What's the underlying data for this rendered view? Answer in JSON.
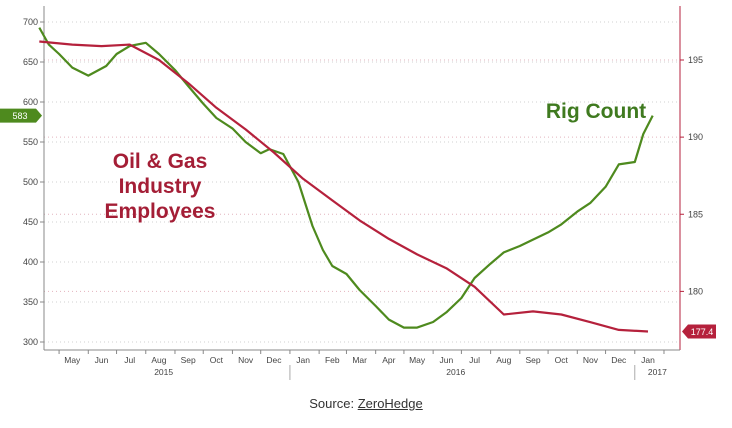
{
  "chart_data": {
    "type": "line",
    "x_month_ticks": [
      "May",
      "Jun",
      "Jul",
      "Aug",
      "Sep",
      "Oct",
      "Nov",
      "Dec",
      "Jan",
      "Feb",
      "Mar",
      "Apr",
      "May",
      "Jun",
      "Jul",
      "Aug",
      "Sep",
      "Oct",
      "Nov",
      "Dec",
      "Jan"
    ],
    "x_year_labels": [
      "2015",
      "2016",
      "2017"
    ],
    "y_left": {
      "ticks": [
        300,
        350,
        400,
        450,
        500,
        550,
        600,
        650,
        700
      ],
      "lim": [
        290,
        720
      ]
    },
    "y_right": {
      "ticks": [
        180,
        185,
        190,
        195
      ],
      "lim": [
        176.2,
        198.5
      ]
    },
    "series": [
      {
        "name": "Rig Count",
        "axis": "left",
        "color": "#4e8a1e",
        "last_value_label": "583",
        "x": [
          "2015-04-10",
          "2015-04-20",
          "2015-05-01",
          "2015-05-15",
          "2015-06-01",
          "2015-06-20",
          "2015-07-01",
          "2015-07-15",
          "2015-08-01",
          "2015-08-15",
          "2015-09-01",
          "2015-09-15",
          "2015-10-01",
          "2015-10-15",
          "2015-11-01",
          "2015-11-15",
          "2015-12-01",
          "2015-12-10",
          "2015-12-25",
          "2016-01-10",
          "2016-01-25",
          "2016-02-05",
          "2016-02-15",
          "2016-03-01",
          "2016-03-15",
          "2016-04-01",
          "2016-04-15",
          "2016-05-01",
          "2016-05-15",
          "2016-06-01",
          "2016-06-15",
          "2016-07-01",
          "2016-07-15",
          "2016-08-01",
          "2016-08-15",
          "2016-09-01",
          "2016-09-15",
          "2016-10-01",
          "2016-10-15",
          "2016-11-01",
          "2016-11-15",
          "2016-12-01",
          "2016-12-15",
          "2017-01-01",
          "2017-01-10",
          "2017-01-20"
        ],
        "values": [
          693,
          672,
          660,
          643,
          633,
          645,
          660,
          670,
          674,
          660,
          640,
          620,
          598,
          580,
          567,
          550,
          536,
          541,
          535,
          500,
          445,
          415,
          395,
          385,
          365,
          345,
          328,
          318,
          318,
          325,
          337,
          355,
          380,
          398,
          412,
          420,
          428,
          437,
          447,
          463,
          474,
          494,
          522,
          525,
          560,
          583
        ]
      },
      {
        "name": "Oil & Gas Industry Employees",
        "axis": "right",
        "color": "#b5213c",
        "last_value_label": "177.4",
        "x": [
          "2015-04-10",
          "2015-05-15",
          "2015-06-15",
          "2015-07-15",
          "2015-08-15",
          "2015-09-15",
          "2015-10-15",
          "2015-11-15",
          "2015-12-15",
          "2016-01-15",
          "2016-02-15",
          "2016-03-15",
          "2016-04-15",
          "2016-05-15",
          "2016-06-15",
          "2016-07-15",
          "2016-08-15",
          "2016-09-15",
          "2016-10-15",
          "2016-11-15",
          "2016-12-15",
          "2017-01-15"
        ],
        "values": [
          196.2,
          196.0,
          195.9,
          196.0,
          195.0,
          193.5,
          191.9,
          190.5,
          189.0,
          187.3,
          185.9,
          184.6,
          183.4,
          182.4,
          181.5,
          180.3,
          178.5,
          178.7,
          178.5,
          178.0,
          177.5,
          177.4
        ]
      }
    ],
    "annotations": [
      "Rig Count",
      "Oil & Gas Industry Employees"
    ]
  },
  "labels": {
    "rig_count": "Rig Count",
    "employees_line1": "Oil & Gas",
    "employees_line2": "Industry",
    "employees_line3": "Employees"
  },
  "caption": {
    "prefix": "Source: ",
    "link": "ZeroHedge"
  }
}
